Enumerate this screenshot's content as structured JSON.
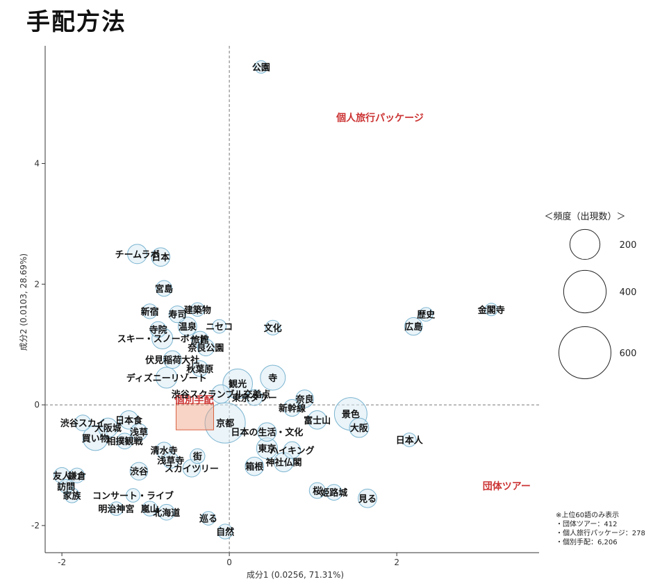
{
  "page": {
    "title": "手配方法"
  },
  "chart_data": {
    "type": "scatter",
    "xlabel": "成分1 (0.0256, 71.31%)",
    "ylabel": "成分2 (0.0103, 28.69%)",
    "xlim": [
      -2.2,
      3.7
    ],
    "ylim": [
      -2.45,
      5.95
    ],
    "xticks": [
      -2,
      0,
      2
    ],
    "yticks": [
      -2,
      0,
      2,
      4
    ],
    "grid": false,
    "reference_lines": {
      "x": 0,
      "y": 0,
      "style": "dashed"
    },
    "points": [
      {
        "label": "公園",
        "x": 0.38,
        "y": 5.6,
        "size": 25
      },
      {
        "label": "チームラボ",
        "x": -1.1,
        "y": 2.5,
        "size": 60
      },
      {
        "label": "日本",
        "x": -0.82,
        "y": 2.45,
        "size": 55
      },
      {
        "label": "宮島",
        "x": -0.78,
        "y": 1.93,
        "size": 40
      },
      {
        "label": "新宿",
        "x": -0.95,
        "y": 1.55,
        "size": 35
      },
      {
        "label": "寿司",
        "x": -0.62,
        "y": 1.5,
        "size": 45
      },
      {
        "label": "建築物",
        "x": -0.38,
        "y": 1.58,
        "size": 30
      },
      {
        "label": "寺院",
        "x": -0.85,
        "y": 1.25,
        "size": 40
      },
      {
        "label": "温泉",
        "x": -0.5,
        "y": 1.3,
        "size": 55
      },
      {
        "label": "ニセコ",
        "x": -0.12,
        "y": 1.3,
        "size": 30
      },
      {
        "label": "旅館",
        "x": -0.35,
        "y": 1.08,
        "size": 45
      },
      {
        "label": "スキー・スノーボード",
        "x": -0.8,
        "y": 1.1,
        "size": 70
      },
      {
        "label": "奈良公園",
        "x": -0.28,
        "y": 0.95,
        "size": 45
      },
      {
        "label": "伏見稲荷大社",
        "x": -0.68,
        "y": 0.75,
        "size": 50
      },
      {
        "label": "秋葉原",
        "x": -0.35,
        "y": 0.6,
        "size": 40
      },
      {
        "label": "文化",
        "x": 0.52,
        "y": 1.28,
        "size": 35
      },
      {
        "label": "寺",
        "x": 0.52,
        "y": 0.45,
        "size": 100
      },
      {
        "label": "観光",
        "x": 0.1,
        "y": 0.35,
        "size": 140
      },
      {
        "label": "ディズニーリゾート",
        "x": -0.75,
        "y": 0.45,
        "size": 70
      },
      {
        "label": "渋谷スクランブル交差点",
        "x": -0.1,
        "y": 0.18,
        "size": 55
      },
      {
        "label": "奈良",
        "x": 0.9,
        "y": 0.1,
        "size": 50
      },
      {
        "label": "東京タワー",
        "x": 0.3,
        "y": 0.12,
        "size": 40
      },
      {
        "label": "京都",
        "x": -0.05,
        "y": -0.3,
        "size": 260
      },
      {
        "label": "日本の生活・文化",
        "x": 0.45,
        "y": -0.45,
        "size": 55
      },
      {
        "label": "新幹線",
        "x": 0.75,
        "y": -0.05,
        "size": 45
      },
      {
        "label": "富士山",
        "x": 1.05,
        "y": -0.25,
        "size": 55
      },
      {
        "label": "景色",
        "x": 1.45,
        "y": -0.15,
        "size": 170
      },
      {
        "label": "大阪",
        "x": 1.55,
        "y": -0.38,
        "size": 60
      },
      {
        "label": "歴史",
        "x": 2.35,
        "y": 1.5,
        "size": 30
      },
      {
        "label": "広島",
        "x": 2.2,
        "y": 1.3,
        "size": 50
      },
      {
        "label": "金閣寺",
        "x": 3.13,
        "y": 1.58,
        "size": 25
      },
      {
        "label": "日本人",
        "x": 2.15,
        "y": -0.58,
        "size": 30
      },
      {
        "label": "東京",
        "x": 0.45,
        "y": -0.72,
        "size": 70
      },
      {
        "label": "ハイキング",
        "x": 0.75,
        "y": -0.75,
        "size": 45
      },
      {
        "label": "神社仏閣",
        "x": 0.65,
        "y": -0.95,
        "size": 60
      },
      {
        "label": "箱根",
        "x": 0.3,
        "y": -1.02,
        "size": 55
      },
      {
        "label": "桜",
        "x": 1.05,
        "y": -1.42,
        "size": 40
      },
      {
        "label": "姫路城",
        "x": 1.25,
        "y": -1.45,
        "size": 40
      },
      {
        "label": "見る",
        "x": 1.65,
        "y": -1.55,
        "size": 55
      },
      {
        "label": "渋谷スカイ",
        "x": -1.75,
        "y": -0.3,
        "size": 40
      },
      {
        "label": "日本食",
        "x": -1.2,
        "y": -0.25,
        "size": 55
      },
      {
        "label": "大阪城",
        "x": -1.45,
        "y": -0.38,
        "size": 60
      },
      {
        "label": "浅草",
        "x": -1.08,
        "y": -0.45,
        "size": 45
      },
      {
        "label": "買い物",
        "x": -1.6,
        "y": -0.55,
        "size": 100
      },
      {
        "label": "相撲観戦",
        "x": -1.25,
        "y": -0.6,
        "size": 40
      },
      {
        "label": "清水寺",
        "x": -0.78,
        "y": -0.75,
        "size": 40
      },
      {
        "label": "街",
        "x": -0.38,
        "y": -0.85,
        "size": 35
      },
      {
        "label": "浅草寺",
        "x": -0.7,
        "y": -0.92,
        "size": 40
      },
      {
        "label": "スカイツリー",
        "x": -0.45,
        "y": -1.05,
        "size": 50
      },
      {
        "label": "渋谷",
        "x": -1.08,
        "y": -1.1,
        "size": 50
      },
      {
        "label": "友人",
        "x": -2.0,
        "y": -1.17,
        "size": 40
      },
      {
        "label": "鎌倉",
        "x": -1.82,
        "y": -1.17,
        "size": 35
      },
      {
        "label": "訪問",
        "x": -1.95,
        "y": -1.35,
        "size": 30
      },
      {
        "label": "家族",
        "x": -1.88,
        "y": -1.5,
        "size": 35
      },
      {
        "label": "コンサート・ライブ",
        "x": -1.15,
        "y": -1.5,
        "size": 30
      },
      {
        "label": "明治神宮",
        "x": -1.35,
        "y": -1.72,
        "size": 30
      },
      {
        "label": "嵐山",
        "x": -0.95,
        "y": -1.72,
        "size": 35
      },
      {
        "label": "北海道",
        "x": -0.75,
        "y": -1.78,
        "size": 40
      },
      {
        "label": "巡る",
        "x": -0.25,
        "y": -1.88,
        "size": 30
      },
      {
        "label": "自然",
        "x": -0.05,
        "y": -2.1,
        "size": 35
      }
    ],
    "categories": [
      {
        "label": "個人旅行パッケージ",
        "x": 1.8,
        "y": 4.7
      },
      {
        "label": "個別手配",
        "x": -0.42,
        "y": -0.15
      },
      {
        "label": "団体ツアー",
        "x": 3.6,
        "y": -1.4
      }
    ],
    "legend": {
      "title": "＜頻度（出現数）＞",
      "sizes": [
        200,
        400,
        600
      ],
      "position": "right"
    },
    "notes": [
      "※上位60語のみ表示",
      "・団体ツアー：412",
      "・個人旅行パッケージ：278",
      "・個別手配：6,206"
    ],
    "colors": {
      "bubble_fill": "#d8ebf4",
      "bubble_stroke": "#7ab4d0",
      "category_text": "#cc3333",
      "category_square": "#f0a080"
    }
  }
}
